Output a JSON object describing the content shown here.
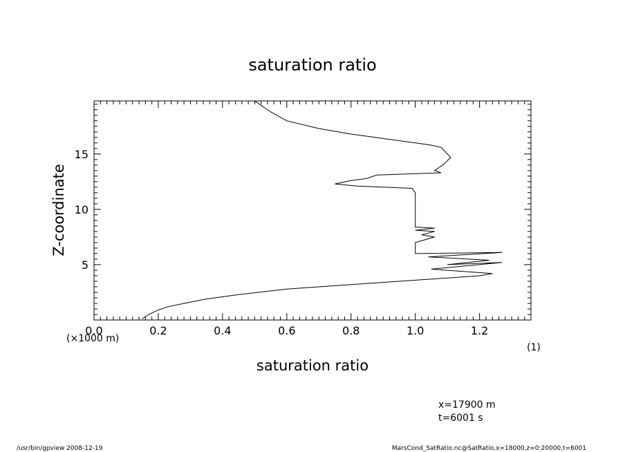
{
  "chart_data": {
    "type": "line",
    "title": "saturation ratio",
    "xlabel": "saturation ratio",
    "ylabel": "Z-coordinate",
    "x_unit": "(1)",
    "y_unit": "(×1000 m)",
    "xlim": [
      0.0,
      1.36
    ],
    "ylim": [
      0.0,
      19.8
    ],
    "xticks": [
      0.0,
      0.2,
      0.4,
      0.6,
      0.8,
      1.0,
      1.2
    ],
    "xtick_labels": [
      "0.0",
      "0.2",
      "0.4",
      "0.6",
      "0.8",
      "1.0",
      "1.2"
    ],
    "yticks": [
      5,
      10,
      15
    ],
    "ytick_labels": [
      "5",
      "10",
      "15"
    ],
    "x_minor_step": 0.02,
    "y_minor_step": 0.5,
    "grid": false,
    "series": [
      {
        "x": [
          0.15,
          0.17,
          0.2,
          0.23,
          0.28,
          0.35,
          0.45,
          0.6,
          0.8,
          1.0,
          1.1,
          1.2,
          1.24,
          1.05,
          1.27,
          1.1,
          1.23,
          1.04,
          1.27,
          1.0,
          1.0,
          1.06,
          1.02,
          1.06,
          1.0,
          1.06,
          1.0,
          1.0,
          1.0,
          0.99,
          0.82,
          0.75,
          0.8,
          0.85,
          0.88,
          1.08,
          1.06,
          1.09,
          1.11,
          1.1,
          1.09,
          1.08,
          1.05,
          1.0,
          0.9,
          0.8,
          0.7,
          0.6,
          0.55,
          0.5
        ],
        "y": [
          0.1,
          0.5,
          0.9,
          1.2,
          1.5,
          1.9,
          2.3,
          2.8,
          3.2,
          3.6,
          3.8,
          4.0,
          4.2,
          4.6,
          5.2,
          5.0,
          5.4,
          5.7,
          6.1,
          6.0,
          7.0,
          7.5,
          7.7,
          8.0,
          8.1,
          8.3,
          8.4,
          10.5,
          11.5,
          11.9,
          12.1,
          12.3,
          12.6,
          12.8,
          13.1,
          13.3,
          13.5,
          14.1,
          14.7,
          15.0,
          15.3,
          15.6,
          15.8,
          16.0,
          16.4,
          16.8,
          17.3,
          18.0,
          18.8,
          19.8
        ]
      }
    ]
  },
  "annotations": {
    "position_line1": "x=17900  m",
    "position_line2": "t=6001  s"
  },
  "footer": {
    "left": "/usr/bin/gpview   2008-12-19",
    "right": "MarsCond_SatRatio.nc@SatRatio,x=18000,z=0:20000,t=6001"
  }
}
